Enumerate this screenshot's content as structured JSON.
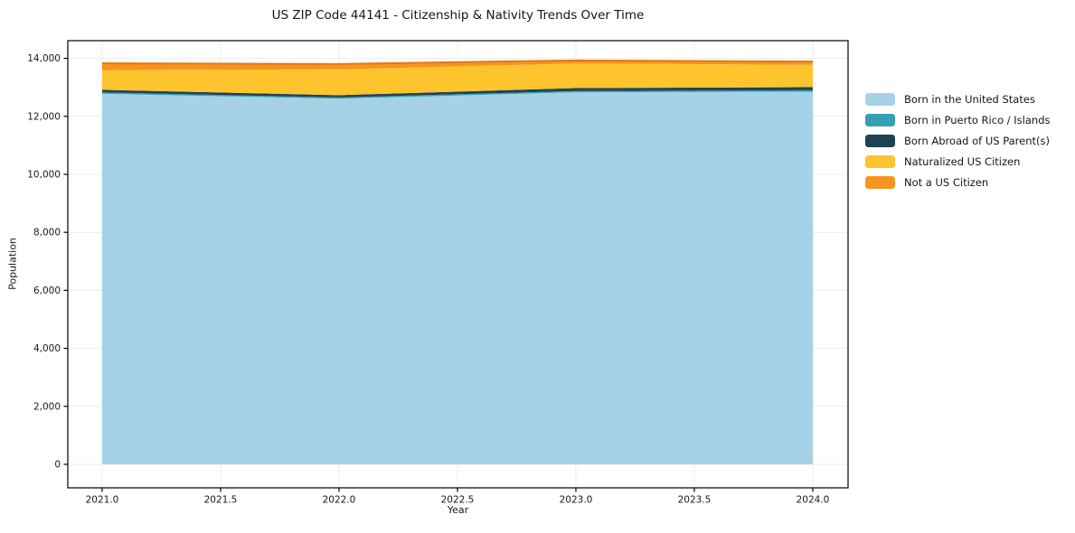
{
  "title": "US ZIP Code 44141 - Citizenship & Nativity Trends Over Time",
  "chart_data": {
    "type": "area",
    "stacked": true,
    "title": "US ZIP Code 44141 - Citizenship & Nativity Trends Over Time",
    "xlabel": "Year",
    "ylabel": "Population",
    "x": [
      2021,
      2022,
      2023,
      2024
    ],
    "series": [
      {
        "name": "Born in the United States",
        "color": "#a6d2e7",
        "edge": null,
        "values": [
          12780,
          12610,
          12830,
          12850
        ]
      },
      {
        "name": "Born in Puerto Rico / Islands",
        "color": "#369fb4",
        "edge": null,
        "values": [
          45,
          40,
          45,
          50
        ]
      },
      {
        "name": "Born Abroad of US Parent(s)",
        "color": "#1f4356",
        "edge": null,
        "values": [
          90,
          80,
          100,
          105
        ]
      },
      {
        "name": "Naturalized US Citizen",
        "color": "#fdc42e",
        "edge": null,
        "values": [
          680,
          890,
          850,
          770
        ]
      },
      {
        "name": "Not a US Citizen",
        "color": "#f7941e",
        "edge": "#e2790f",
        "values": [
          235,
          185,
          105,
          115
        ]
      }
    ],
    "totals": [
      13830,
      13805,
      13930,
      13890
    ],
    "x_ticks": [
      2021.0,
      2021.5,
      2022.0,
      2022.5,
      2023.0,
      2023.5,
      2024.0
    ],
    "x_tick_labels": [
      "2021.0",
      "2021.5",
      "2022.0",
      "2022.5",
      "2023.0",
      "2023.5",
      "2024.0"
    ],
    "y_ticks": [
      0,
      2000,
      4000,
      6000,
      8000,
      10000,
      12000,
      14000
    ],
    "y_tick_labels": [
      "0",
      "2,000",
      "4,000",
      "6,000",
      "8,000",
      "10,000",
      "12,000",
      "14,000"
    ],
    "xlim": [
      2020.855,
      2024.149
    ],
    "ylim": [
      -810,
      14610
    ],
    "grid": true,
    "grid_color": "#ececec",
    "spine_color": "#000000",
    "tick_label_color": "#1a1a1a",
    "legend_position": "right"
  }
}
